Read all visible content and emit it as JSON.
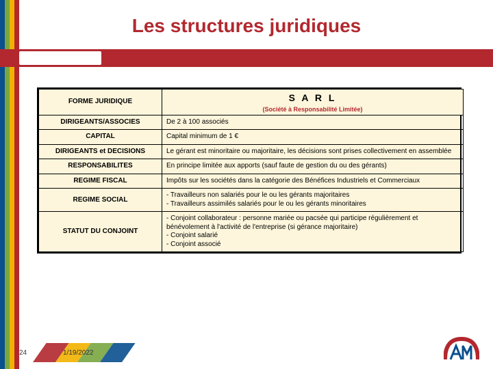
{
  "colors": {
    "brand_red": "#b2282e",
    "brand_blue": "#0a4f8e",
    "brand_green": "#7aa641",
    "brand_yellow": "#f2b200",
    "table_bg": "#fdf6dc",
    "text": "#000000",
    "border": "#000000"
  },
  "title": "Les structures juridiques",
  "table": {
    "header_left": "FORME JURIDIQUE",
    "header_right_name": "S A R L",
    "header_right_sub": "(Société à Responsabilité Limitée)",
    "rows": [
      {
        "label": "DIRIGEANTS/ASSOCIES",
        "value": "De 2 à 100 associés"
      },
      {
        "label": "CAPITAL",
        "value": "Capital minimum de 1 €"
      },
      {
        "label": "DIRIGEANTS et DECISIONS",
        "value": "Le gérant est minoritaire ou majoritaire, les décisions sont prises collectivement en assemblée"
      },
      {
        "label": "RESPONSABILITES",
        "value": "En principe limitée aux apports (sauf faute de gestion du ou des gérants)"
      },
      {
        "label": "REGIME FISCAL",
        "value": "Impôts sur les sociétés dans la catégorie des Bénéfices Industriels et Commerciaux"
      },
      {
        "label": "REGIME SOCIAL",
        "value": "- Travailleurs non salariés pour le ou les gérants majoritaires\n- Travailleurs assimilés salariés pour le ou les gérants minoritaires"
      },
      {
        "label": "STATUT DU CONJOINT",
        "value": "- Conjoint collaborateur : personne mariée ou pacsée qui participe régulièrement et bénévolement à l'activité de l'entreprise (si gérance majoritaire)\n- Conjoint salarié\n- Conjoint associé"
      }
    ]
  },
  "footer": {
    "page": "24",
    "date": "1/19/2022"
  }
}
